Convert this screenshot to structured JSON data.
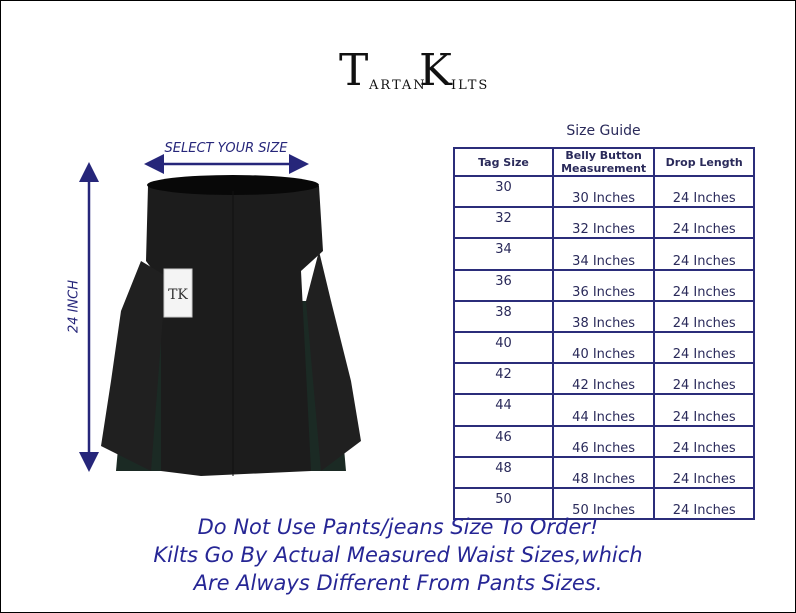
{
  "logo": {
    "text": "TARTAN KILTS",
    "big_left": "T",
    "small_left": "ARTAN",
    "big_right": "K",
    "small_right": "ILTS"
  },
  "image_labels": {
    "width": "SELECT YOUR SIZE",
    "length": "24 INCH"
  },
  "colors": {
    "accent": "#26267a",
    "table_border": "#2b2d7a",
    "kilt": "#1b1b1b",
    "tartan": "#1b2a24"
  },
  "size_guide": {
    "title": "Size Guide",
    "headers": [
      "Tag Size",
      "Belly Button Measurement",
      "Drop Length"
    ],
    "rows": [
      [
        "30",
        "30 Inches",
        "24 Inches"
      ],
      [
        "32",
        "32 Inches",
        "24 Inches"
      ],
      [
        "34",
        "34 Inches",
        "24 Inches"
      ],
      [
        "36",
        "36 Inches",
        "24 Inches"
      ],
      [
        "38",
        "38 Inches",
        "24 Inches"
      ],
      [
        "40",
        "40 Inches",
        "24 Inches"
      ],
      [
        "42",
        "42 Inches",
        "24 Inches"
      ],
      [
        "44",
        "44 Inches",
        "24 Inches"
      ],
      [
        "46",
        "46 Inches",
        "24 Inches"
      ],
      [
        "48",
        "48 Inches",
        "24 Inches"
      ],
      [
        "50",
        "50 Inches",
        "24 Inches"
      ]
    ]
  },
  "notice": [
    "Do Not Use Pants/jeans Size To Order!",
    "Kilts Go By Actual Measured Waist Sizes,which",
    "Are Always Different From Pants Sizes."
  ]
}
